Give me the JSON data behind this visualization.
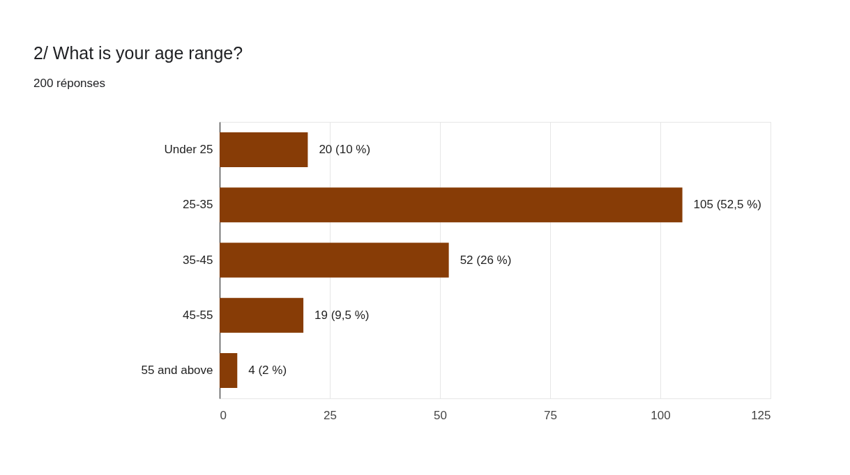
{
  "chart_data": {
    "type": "bar",
    "title": "2/ What is your age range?",
    "subtitle": "200 réponses",
    "orientation": "horizontal",
    "categories": [
      "Under 25",
      "25-35",
      "35-45",
      "45-55",
      "55 and above"
    ],
    "values": [
      20,
      105,
      52,
      19,
      4
    ],
    "value_labels": [
      "20 (10 %)",
      "105 (52,5 %)",
      "52 (26 %)",
      "19 (9,5 %)",
      "4 (2 %)"
    ],
    "color": "#873c06",
    "xlim": [
      0,
      125
    ],
    "xticks": [
      0,
      25,
      50,
      75,
      100,
      125
    ],
    "grid": "x"
  }
}
